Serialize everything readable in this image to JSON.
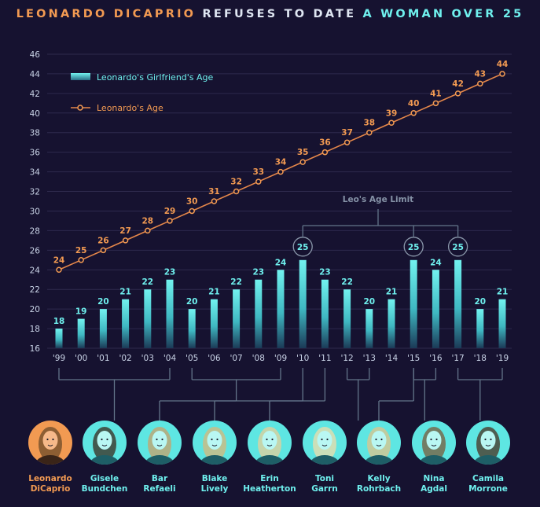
{
  "title": {
    "part1": "LEONARDO DICAPRIO",
    "part2": "REFUSES TO DATE",
    "part3": "A WOMAN OVER 25"
  },
  "colors": {
    "background": "#161230",
    "orange": "#f29a52",
    "cyan": "#6ff0ee",
    "grid": "#2e2a4d",
    "connector": "#63758a"
  },
  "chart_data": {
    "type": "bar",
    "categories": [
      "'99",
      "'00",
      "'01",
      "'02",
      "'03",
      "'04",
      "'05",
      "'06",
      "'07",
      "'08",
      "'09",
      "'10",
      "'11",
      "'12",
      "'13",
      "'14",
      "'15",
      "'16",
      "'17",
      "'18",
      "'19"
    ],
    "series": [
      {
        "name": "Leonardo's Girlfriend's Age",
        "type": "bar",
        "values": [
          18,
          19,
          20,
          21,
          22,
          23,
          20,
          21,
          22,
          23,
          24,
          25,
          23,
          22,
          20,
          21,
          25,
          24,
          25,
          20,
          21
        ]
      },
      {
        "name": "Leonardo's Age",
        "type": "line",
        "values": [
          24,
          25,
          26,
          27,
          28,
          29,
          30,
          31,
          32,
          33,
          34,
          35,
          36,
          37,
          38,
          39,
          40,
          41,
          42,
          43,
          44
        ]
      }
    ],
    "yticks": [
      16,
      18,
      20,
      22,
      24,
      26,
      28,
      30,
      32,
      34,
      36,
      38,
      40,
      42,
      44,
      46
    ],
    "ylim": [
      16,
      46
    ],
    "grid": true,
    "legend": {
      "position": "top-left",
      "entries": [
        "Leonardo's Girlfriend's Age",
        "Leonardo's Age"
      ]
    },
    "annotation": "Leo's Age Limit",
    "limit_value": 25
  },
  "people": [
    {
      "name": "Leonardo",
      "name2": "DiCaprio",
      "highlight": true
    },
    {
      "name": "Gisele",
      "name2": "Bundchen",
      "start": 0,
      "end": 5
    },
    {
      "name": "Bar",
      "name2": "Refaeli",
      "start": 6,
      "end": 10
    },
    {
      "name": "Blake",
      "name2": "Lively",
      "start": 11,
      "end": 11
    },
    {
      "name": "Erin",
      "name2": "Heatherton",
      "start": 12,
      "end": 12
    },
    {
      "name": "Toni",
      "name2": "Garrn",
      "start": 13,
      "end": 14
    },
    {
      "name": "Kelly",
      "name2": "Rohrbach",
      "start": 16,
      "end": 16
    },
    {
      "name": "Nina",
      "name2": "Agdal",
      "start": 16,
      "end": 17
    },
    {
      "name": "Camila",
      "name2": "Morrone",
      "start": 18,
      "end": 20
    }
  ]
}
